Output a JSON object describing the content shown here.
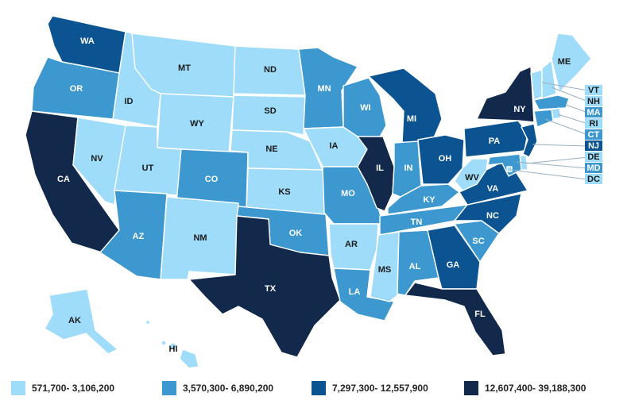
{
  "colors": {
    "c1": "#9fdcf9",
    "c2": "#3d98cf",
    "c3": "#0b5491",
    "c4": "#13294b"
  },
  "legend": [
    {
      "label": "571,700- 3,106,200",
      "color": "c1"
    },
    {
      "label": "3,570,300- 6,890,200",
      "color": "c2"
    },
    {
      "label": "7,297,300- 12,557,900",
      "color": "c3"
    },
    {
      "label": "12,607,400- 39,188,300",
      "color": "c4"
    }
  ],
  "states": {
    "WA": "c3",
    "OR": "c2",
    "CA": "c4",
    "ID": "c1",
    "NV": "c1",
    "MT": "c1",
    "WY": "c1",
    "UT": "c1",
    "AZ": "c2",
    "CO": "c2",
    "NM": "c1",
    "ND": "c1",
    "SD": "c1",
    "NE": "c1",
    "KS": "c1",
    "OK": "c2",
    "TX": "c4",
    "MN": "c2",
    "IA": "c1",
    "MO": "c2",
    "AR": "c1",
    "LA": "c2",
    "WI": "c2",
    "IL": "c4",
    "MI": "c3",
    "IN": "c2",
    "OH": "c3",
    "KY": "c2",
    "TN": "c2",
    "MS": "c1",
    "AL": "c2",
    "GA": "c3",
    "FL": "c4",
    "SC": "c2",
    "NC": "c3",
    "VA": "c3",
    "WV": "c1",
    "PA": "c3",
    "NY": "c4",
    "ME": "c1",
    "VT": "c1",
    "NH": "c1",
    "MA": "c2",
    "RI": "c1",
    "CT": "c2",
    "NJ": "c3",
    "DE": "c1",
    "MD": "c2",
    "DC": "c1",
    "AK": "c1",
    "HI": "c1"
  },
  "labels": {
    "WA": "WA",
    "OR": "OR",
    "CA": "CA",
    "ID": "ID",
    "NV": "NV",
    "MT": "MT",
    "WY": "WY",
    "UT": "UT",
    "AZ": "AZ",
    "CO": "CO",
    "NM": "NM",
    "ND": "ND",
    "SD": "SD",
    "NE": "NE",
    "KS": "KS",
    "OK": "OK",
    "TX": "TX",
    "MN": "MN",
    "IA": "IA",
    "MO": "MO",
    "AR": "AR",
    "LA": "LA",
    "WI": "WI",
    "IL": "IL",
    "MI": "MI",
    "IN": "IN",
    "OH": "OH",
    "KY": "KY",
    "TN": "TN",
    "MS": "MS",
    "AL": "AL",
    "GA": "GA",
    "FL": "FL",
    "SC": "SC",
    "NC": "NC",
    "VA": "VA",
    "WV": "WV",
    "PA": "PA",
    "NY": "NY",
    "ME": "ME",
    "AK": "AK",
    "HI": "HI",
    "VT": "VT",
    "NH": "NH",
    "MA": "MA",
    "RI": "RI",
    "CT": "CT",
    "NJ": "NJ",
    "DE": "DE",
    "MD": "MD",
    "DC": "DC"
  }
}
